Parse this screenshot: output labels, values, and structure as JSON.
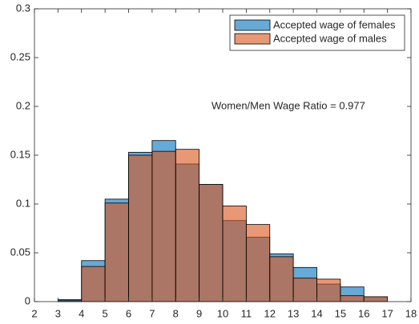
{
  "chart_data": {
    "type": "histogram",
    "bins": [
      3,
      4,
      5,
      6,
      7,
      8,
      9,
      10,
      11,
      12,
      13,
      14,
      15,
      16,
      17
    ],
    "series": [
      {
        "name": "Accepted wage of females",
        "color": "#0072BD",
        "values": [
          0.002,
          0.042,
          0.105,
          0.153,
          0.165,
          0.141,
          0.12,
          0.083,
          0.066,
          0.049,
          0.035,
          0.018,
          0.015,
          0.005
        ]
      },
      {
        "name": "Accepted wage of males",
        "color": "#D95319",
        "values": [
          0.001,
          0.036,
          0.101,
          0.15,
          0.154,
          0.156,
          0.12,
          0.098,
          0.079,
          0.046,
          0.024,
          0.023,
          0.006,
          0.005
        ]
      }
    ],
    "annotation": "Women/Men Wage Ratio = 0.977",
    "xlim": [
      2,
      18
    ],
    "xticks": [
      2,
      3,
      4,
      5,
      6,
      7,
      8,
      9,
      10,
      11,
      12,
      13,
      14,
      15,
      16,
      17,
      18
    ],
    "ylim": [
      0,
      0.3
    ],
    "yticks": [
      0,
      0.05,
      0.1,
      0.15,
      0.2,
      0.25,
      0.3
    ],
    "grid": false,
    "legend": "top-right"
  }
}
